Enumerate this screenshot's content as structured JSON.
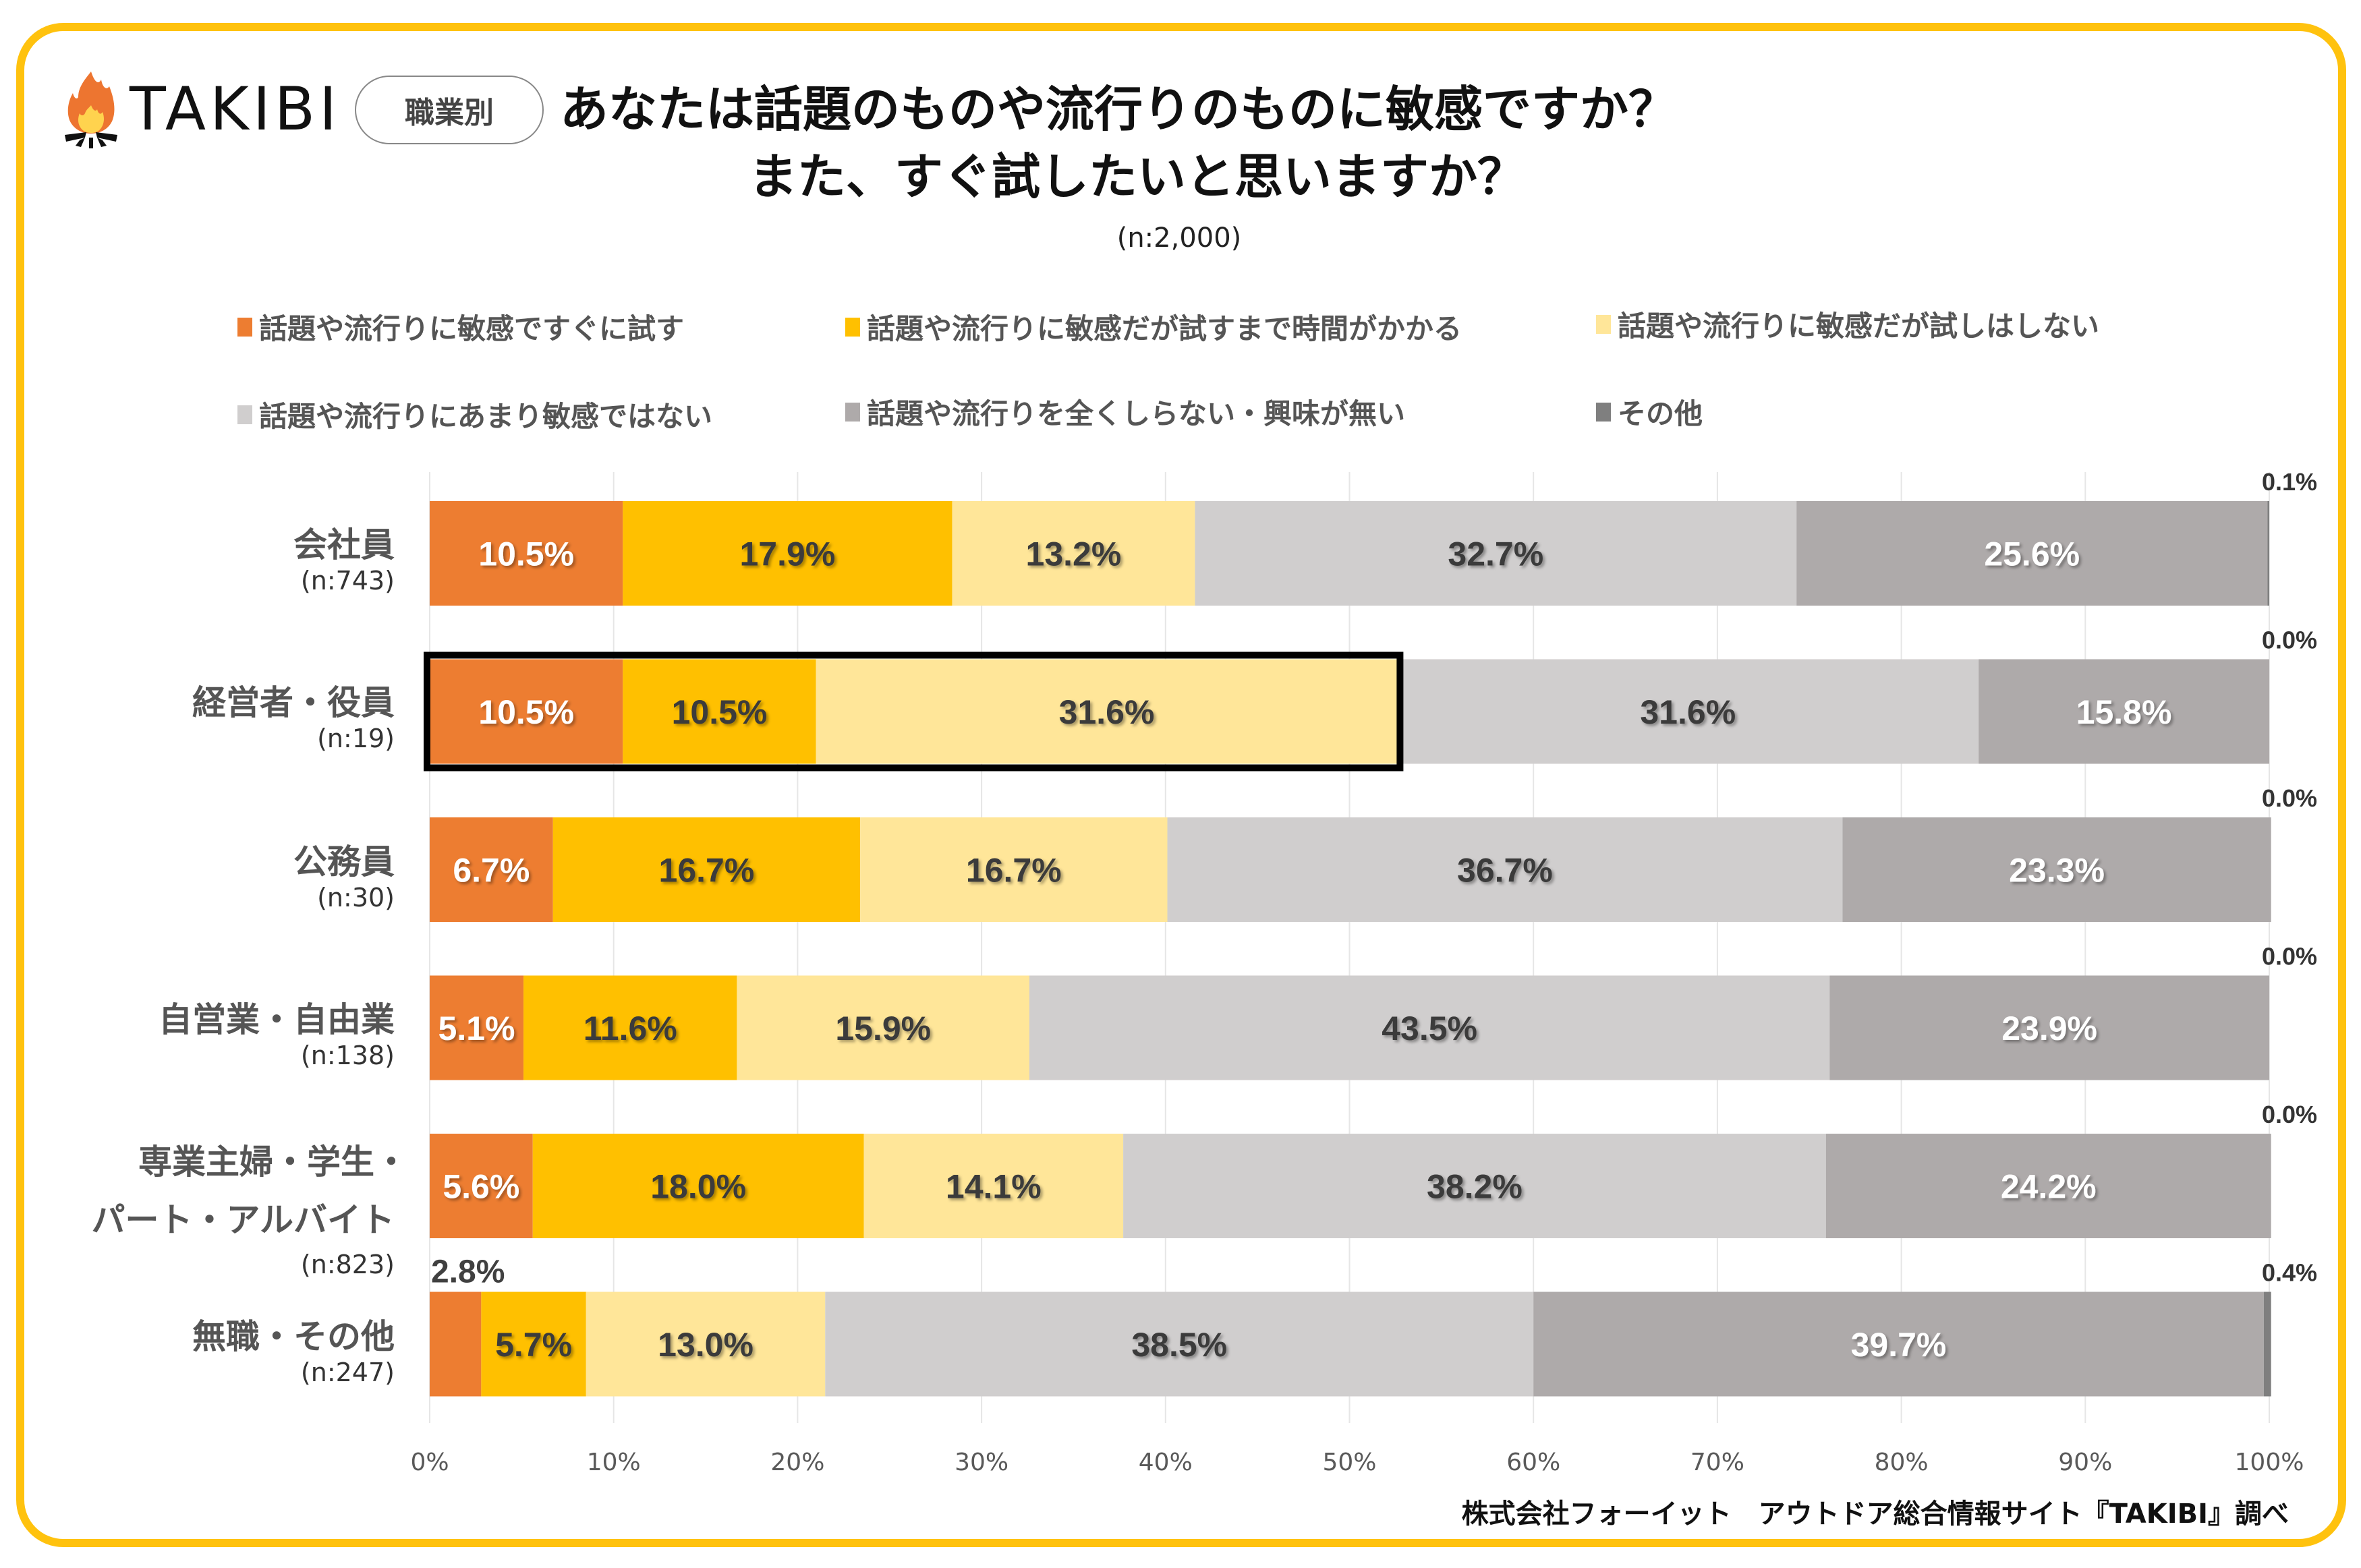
{
  "header": {
    "logo_text": "TAKIBI",
    "tag_label": "職業別",
    "title_line1": "あなたは話題のものや流行りのものに敏感ですか？",
    "title_line2": "また、すぐ試したいと思いますか？",
    "sample_size": "(n:2,000)"
  },
  "footer": {
    "credit": "株式会社フォーイット　アウトドア総合情報サイト『TAKIBI』調べ"
  },
  "colors": {
    "frame": "#FFC20E",
    "series": [
      "#ED7D31",
      "#FFC000",
      "#FFE699",
      "#D0CECE",
      "#AEAAAA",
      "#7F7F7F"
    ],
    "highlight_border": "#000000"
  },
  "chart_data": {
    "type": "bar",
    "orientation": "horizontal-stacked-100",
    "title": "あなたは話題のものや流行りのものに敏感ですか？ また、すぐ試したいと思いますか？",
    "subtitle": "(n:2,000)",
    "xlabel": "",
    "ylabel": "",
    "xlim": [
      0,
      100
    ],
    "x_ticks": [
      "0%",
      "10%",
      "20%",
      "30%",
      "40%",
      "50%",
      "60%",
      "70%",
      "80%",
      "90%",
      "100%"
    ],
    "grid": true,
    "legend_position": "top",
    "categories": [
      {
        "name": "会社員",
        "n": "(n:743)"
      },
      {
        "name": "経営者・役員",
        "n": "(n:19)"
      },
      {
        "name": "公務員",
        "n": "(n:30)"
      },
      {
        "name": "自営業・自由業",
        "n": "(n:138)"
      },
      {
        "name": "専業主婦・学生・パート・アルバイト",
        "name_lines": [
          "専業主婦・学生・",
          "パート・アルバイト"
        ],
        "n": "(n:823)"
      },
      {
        "name": "無職・その他",
        "n": "(n:247)"
      }
    ],
    "series": [
      {
        "name": "話題や流行りに敏感ですぐに試す",
        "values": [
          10.5,
          10.5,
          6.7,
          5.1,
          5.6,
          2.8
        ]
      },
      {
        "name": "話題や流行りに敏感だが試すまで時間がかかる",
        "values": [
          17.9,
          10.5,
          16.7,
          11.6,
          18.0,
          5.7
        ]
      },
      {
        "name": "話題や流行りに敏感だが試しはしない",
        "values": [
          13.2,
          31.6,
          16.7,
          15.9,
          14.1,
          13.0
        ]
      },
      {
        "name": "話題や流行りにあまり敏感ではない",
        "values": [
          32.7,
          31.6,
          36.7,
          43.5,
          38.2,
          38.5
        ]
      },
      {
        "name": "話題や流行りを全くしらない・興味が無い",
        "values": [
          25.6,
          15.8,
          23.3,
          23.9,
          24.2,
          39.7
        ]
      },
      {
        "name": "その他",
        "values": [
          0.1,
          0.0,
          0.0,
          0.0,
          0.0,
          0.4
        ]
      }
    ],
    "highlight": {
      "category_index": 1,
      "series_indices": [
        0,
        1,
        2
      ]
    },
    "label_format": "{v}%"
  }
}
